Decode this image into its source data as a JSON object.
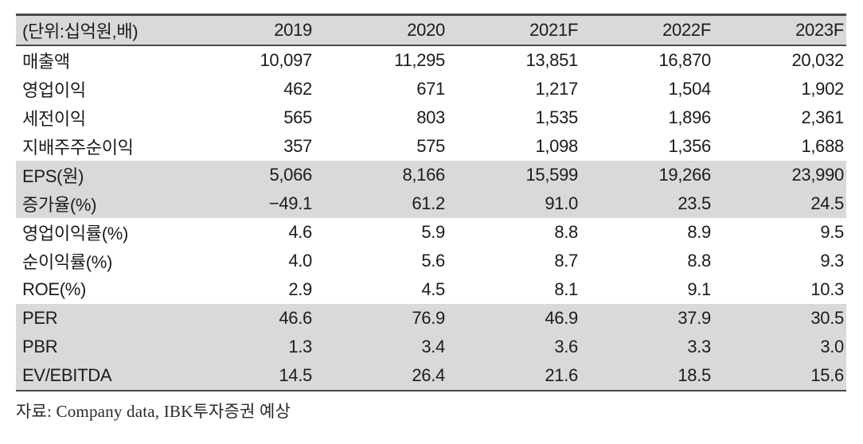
{
  "table": {
    "unit_label": "(단위:십억원,배)",
    "columns": [
      "2019",
      "2020",
      "2021F",
      "2022F",
      "2023F"
    ],
    "rows": [
      {
        "label": "매출액",
        "values": [
          "10,097",
          "11,295",
          "13,851",
          "16,870",
          "20,032"
        ],
        "shaded": false
      },
      {
        "label": "영업이익",
        "values": [
          "462",
          "671",
          "1,217",
          "1,504",
          "1,902"
        ],
        "shaded": false
      },
      {
        "label": "세전이익",
        "values": [
          "565",
          "803",
          "1,535",
          "1,896",
          "2,361"
        ],
        "shaded": false
      },
      {
        "label": "지배주주순이익",
        "values": [
          "357",
          "575",
          "1,098",
          "1,356",
          "1,688"
        ],
        "shaded": false
      },
      {
        "label": "EPS(원)",
        "values": [
          "5,066",
          "8,166",
          "15,599",
          "19,266",
          "23,990"
        ],
        "shaded": true
      },
      {
        "label": "증가율(%)",
        "values": [
          "−49.1",
          "61.2",
          "91.0",
          "23.5",
          "24.5"
        ],
        "shaded": true
      },
      {
        "label": "영업이익률(%)",
        "values": [
          "4.6",
          "5.9",
          "8.8",
          "8.9",
          "9.5"
        ],
        "shaded": false
      },
      {
        "label": "순이익률(%)",
        "values": [
          "4.0",
          "5.6",
          "8.7",
          "8.8",
          "9.3"
        ],
        "shaded": false
      },
      {
        "label": "ROE(%)",
        "values": [
          "2.9",
          "4.5",
          "8.1",
          "9.1",
          "10.3"
        ],
        "shaded": false
      },
      {
        "label": "PER",
        "values": [
          "46.6",
          "76.9",
          "46.9",
          "37.9",
          "30.5"
        ],
        "shaded": true
      },
      {
        "label": "PBR",
        "values": [
          "1.3",
          "3.4",
          "3.6",
          "3.3",
          "3.0"
        ],
        "shaded": true
      },
      {
        "label": "EV/EBITDA",
        "values": [
          "14.5",
          "26.4",
          "21.6",
          "18.5",
          "15.6"
        ],
        "shaded": true
      }
    ]
  },
  "footer": {
    "source": "자료: Company data, IBK투자증권 예상"
  },
  "colors": {
    "row_shade": "#d9d9d9",
    "header_bg": "#d9d9d9",
    "border_dark": "#4a4a4a",
    "text": "#1c1c1c"
  }
}
